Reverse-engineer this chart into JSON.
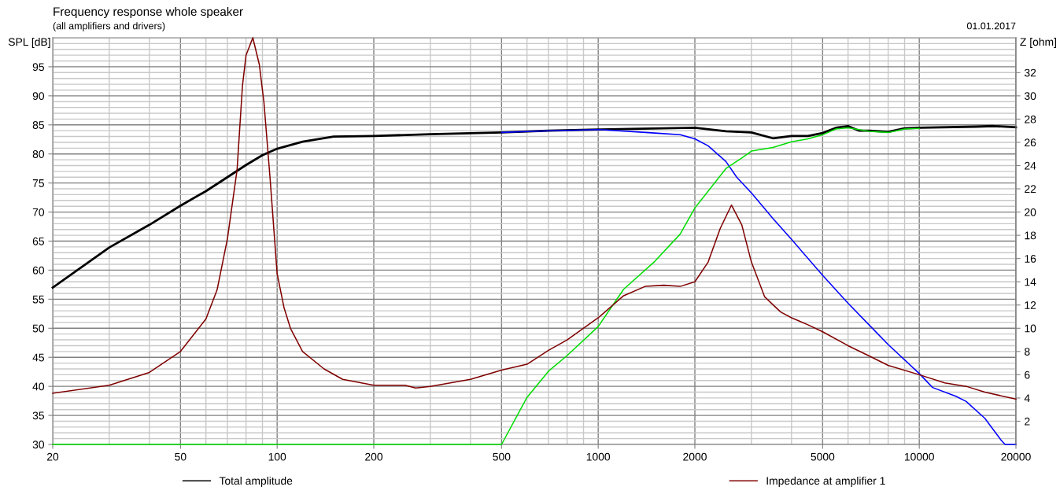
{
  "chart_data": {
    "type": "line",
    "title": "Frequency response whole speaker",
    "subtitle": "(all amplifiers and drivers)",
    "ylabel": "SPL [dB]",
    "y2label": "Z [ohm]",
    "annotations": [
      "01.01.2017"
    ],
    "log": "x",
    "grid": true,
    "legend": "bottom",
    "line_style": "solid",
    "marker": "none",
    "xlim": [
      20,
      20000
    ],
    "xticks": [
      20,
      50,
      100,
      200,
      500,
      1000,
      2000,
      5000,
      10000,
      20000
    ],
    "ylim": [
      30,
      100
    ],
    "yticks": [
      30,
      35,
      40,
      45,
      50,
      55,
      60,
      65,
      70,
      75,
      80,
      85,
      90,
      95
    ],
    "y2lim": [
      0,
      35
    ],
    "y2ticks": [
      2,
      4,
      6,
      8,
      10,
      12,
      14,
      16,
      18,
      20,
      22,
      24,
      26,
      28,
      30,
      32
    ],
    "series": [
      {
        "name": "Total amplitude",
        "color": "#000000",
        "x": [
          20,
          30,
          40,
          50,
          60,
          70,
          80,
          90,
          100,
          120,
          150,
          200,
          300,
          500,
          700,
          1000,
          2000,
          2500,
          3000,
          3500,
          4000,
          4500,
          5000,
          5500,
          6000,
          6500,
          7000,
          8000,
          9000,
          10000,
          15000,
          17000,
          20000
        ],
        "values": [
          57.0,
          63.9,
          67.8,
          71.1,
          73.6,
          76.0,
          78.1,
          79.8,
          80.9,
          82.1,
          83.0,
          83.1,
          83.4,
          83.7,
          84.0,
          84.2,
          84.5,
          83.9,
          83.7,
          82.7,
          83.1,
          83.1,
          83.6,
          84.5,
          84.8,
          84.0,
          84.0,
          83.8,
          84.4,
          84.5,
          84.7,
          84.8,
          84.6
        ]
      },
      {
        "color": "#0000ff",
        "x": [
          500,
          700,
          1000,
          1500,
          1800,
          2000,
          2200,
          2500,
          2700,
          3000,
          3500,
          4000,
          5000,
          6000,
          7000,
          8000,
          10000,
          11000,
          13000,
          14000,
          16000,
          18000,
          18500,
          20000
        ],
        "values": [
          83.7,
          84.0,
          84.2,
          83.6,
          83.3,
          82.6,
          81.4,
          78.7,
          76.0,
          73.3,
          68.9,
          65.3,
          59.1,
          54.3,
          50.5,
          47.2,
          42.2,
          39.8,
          38.3,
          37.4,
          34.5,
          30.7,
          30,
          30
        ]
      },
      {
        "color": "#00dd00",
        "x": [
          20,
          500,
          600,
          700,
          800,
          1000,
          1200,
          1500,
          1800,
          2000,
          2500,
          2800,
          3000,
          3500,
          4000,
          4500,
          5000,
          5500,
          6000,
          7000,
          8000,
          9000,
          10000
        ],
        "values": [
          30,
          30,
          38.1,
          42.6,
          45.3,
          50.3,
          56.7,
          61.5,
          66.2,
          70.7,
          77.5,
          79.3,
          80.5,
          81.1,
          82.1,
          82.6,
          83.3,
          84.3,
          84.5,
          83.9,
          83.7,
          84.3,
          84.4
        ]
      },
      {
        "name": "Impedance at amplifier 1",
        "color": "#800000",
        "axis": "y2",
        "x": [
          20,
          30,
          40,
          50,
          60,
          65,
          70,
          75,
          78,
          80,
          84,
          88,
          91,
          95,
          100,
          105,
          110,
          120,
          140,
          160,
          200,
          250,
          270,
          300,
          400,
          500,
          600,
          700,
          800,
          1000,
          1200,
          1400,
          1600,
          1800,
          2000,
          2200,
          2400,
          2600,
          2800,
          3000,
          3300,
          3700,
          4000,
          4500,
          5000,
          6000,
          7000,
          8000,
          10000,
          12000,
          14000,
          16000,
          20000
        ],
        "values": [
          4.4,
          5.1,
          6.2,
          8.0,
          10.8,
          13.3,
          17.7,
          23.6,
          30.9,
          33.5,
          35,
          32.7,
          29.4,
          23.0,
          14.7,
          11.8,
          10.0,
          8.0,
          6.5,
          5.6,
          5.1,
          5.1,
          4.85,
          5.0,
          5.6,
          6.4,
          6.9,
          8.1,
          9.0,
          10.9,
          12.8,
          13.6,
          13.7,
          13.6,
          14.0,
          15.7,
          18.6,
          20.6,
          18.9,
          15.7,
          12.7,
          11.4,
          10.9,
          10.3,
          9.7,
          8.5,
          7.6,
          6.8,
          6.0,
          5.3,
          5.0,
          4.5,
          3.9
        ]
      }
    ]
  }
}
